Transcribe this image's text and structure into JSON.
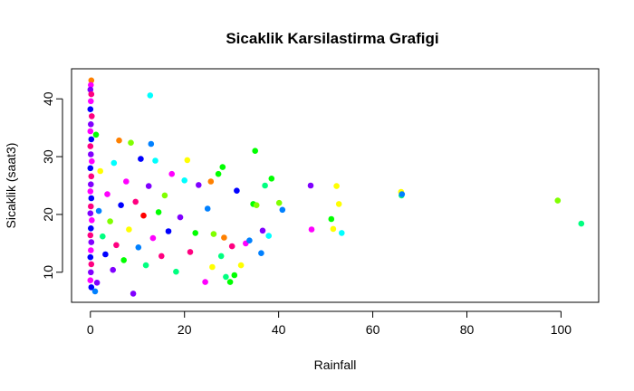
{
  "chart_data": {
    "type": "scatter",
    "title": "Sicaklik Karsilastirma Grafigi",
    "xlabel": "Rainfall",
    "ylabel": "Sicaklik (saat3)",
    "xlim": [
      -4,
      108
    ],
    "ylim": [
      4.8,
      45.2
    ],
    "x_ticks": [
      0,
      20,
      40,
      60,
      80,
      100
    ],
    "y_ticks": [
      10,
      20,
      30,
      40
    ],
    "grid": false,
    "legend": "none",
    "point_colors": [
      "#FF0000",
      "#FF8000",
      "#FFFF00",
      "#80FF00",
      "#00FF00",
      "#00FF80",
      "#00FFFF",
      "#0080FF",
      "#0000FF",
      "#8000FF",
      "#FF00FF",
      "#FF0080"
    ],
    "series": [
      {
        "name": "",
        "points": [
          {
            "x": 0.2,
            "y": 43.2,
            "c": 1
          },
          {
            "x": 0.1,
            "y": 42.4,
            "c": 10
          },
          {
            "x": 0.0,
            "y": 41.6,
            "c": 9
          },
          {
            "x": 0.2,
            "y": 40.8,
            "c": 11
          },
          {
            "x": 12.7,
            "y": 40.6,
            "c": 6
          },
          {
            "x": 0.1,
            "y": 39.6,
            "c": 10
          },
          {
            "x": 0.0,
            "y": 38.2,
            "c": 8
          },
          {
            "x": 0.3,
            "y": 37.0,
            "c": 11
          },
          {
            "x": 0.1,
            "y": 35.6,
            "c": 9
          },
          {
            "x": 0.0,
            "y": 34.4,
            "c": 10
          },
          {
            "x": 0.2,
            "y": 33.0,
            "c": 8
          },
          {
            "x": 0.0,
            "y": 31.8,
            "c": 11
          },
          {
            "x": 0.1,
            "y": 30.4,
            "c": 9
          },
          {
            "x": 0.3,
            "y": 29.2,
            "c": 10
          },
          {
            "x": 0.0,
            "y": 28.0,
            "c": 8
          },
          {
            "x": 0.2,
            "y": 26.6,
            "c": 11
          },
          {
            "x": 0.1,
            "y": 25.2,
            "c": 9
          },
          {
            "x": 0.0,
            "y": 24.0,
            "c": 10
          },
          {
            "x": 0.2,
            "y": 22.8,
            "c": 8
          },
          {
            "x": 0.1,
            "y": 21.4,
            "c": 11
          },
          {
            "x": 0.0,
            "y": 20.2,
            "c": 9
          },
          {
            "x": 0.3,
            "y": 19.0,
            "c": 10
          },
          {
            "x": 0.1,
            "y": 17.6,
            "c": 8
          },
          {
            "x": 0.0,
            "y": 16.4,
            "c": 11
          },
          {
            "x": 0.2,
            "y": 15.2,
            "c": 9
          },
          {
            "x": 0.1,
            "y": 13.8,
            "c": 10
          },
          {
            "x": 0.0,
            "y": 12.6,
            "c": 8
          },
          {
            "x": 0.2,
            "y": 11.4,
            "c": 11
          },
          {
            "x": 0.1,
            "y": 10.0,
            "c": 9
          },
          {
            "x": 0.0,
            "y": 8.6,
            "c": 10
          },
          {
            "x": 0.2,
            "y": 7.4,
            "c": 8
          },
          {
            "x": 1.0,
            "y": 6.7,
            "c": 7
          },
          {
            "x": 1.4,
            "y": 8.2,
            "c": 9
          },
          {
            "x": 2.1,
            "y": 27.5,
            "c": 2
          },
          {
            "x": 1.8,
            "y": 20.6,
            "c": 7
          },
          {
            "x": 2.6,
            "y": 16.2,
            "c": 5
          },
          {
            "x": 3.2,
            "y": 13.1,
            "c": 8
          },
          {
            "x": 1.2,
            "y": 33.8,
            "c": 4
          },
          {
            "x": 3.6,
            "y": 23.5,
            "c": 10
          },
          {
            "x": 4.2,
            "y": 18.8,
            "c": 3
          },
          {
            "x": 4.8,
            "y": 10.4,
            "c": 9
          },
          {
            "x": 5.0,
            "y": 28.9,
            "c": 6
          },
          {
            "x": 5.5,
            "y": 14.7,
            "c": 11
          },
          {
            "x": 6.1,
            "y": 32.8,
            "c": 1
          },
          {
            "x": 6.5,
            "y": 21.6,
            "c": 8
          },
          {
            "x": 7.1,
            "y": 12.1,
            "c": 4
          },
          {
            "x": 7.6,
            "y": 25.7,
            "c": 10
          },
          {
            "x": 8.2,
            "y": 17.4,
            "c": 2
          },
          {
            "x": 8.6,
            "y": 32.4,
            "c": 3
          },
          {
            "x": 9.1,
            "y": 6.3,
            "c": 9
          },
          {
            "x": 9.6,
            "y": 22.2,
            "c": 11
          },
          {
            "x": 10.2,
            "y": 14.3,
            "c": 7
          },
          {
            "x": 10.7,
            "y": 29.6,
            "c": 8
          },
          {
            "x": 11.3,
            "y": 19.8,
            "c": 0
          },
          {
            "x": 11.8,
            "y": 11.2,
            "c": 5
          },
          {
            "x": 12.4,
            "y": 24.9,
            "c": 9
          },
          {
            "x": 12.9,
            "y": 32.2,
            "c": 7
          },
          {
            "x": 13.3,
            "y": 15.9,
            "c": 10
          },
          {
            "x": 13.8,
            "y": 29.3,
            "c": 6
          },
          {
            "x": 14.5,
            "y": 20.4,
            "c": 4
          },
          {
            "x": 15.1,
            "y": 12.8,
            "c": 11
          },
          {
            "x": 15.8,
            "y": 23.3,
            "c": 3
          },
          {
            "x": 16.6,
            "y": 17.1,
            "c": 8
          },
          {
            "x": 17.3,
            "y": 27.0,
            "c": 10
          },
          {
            "x": 18.2,
            "y": 10.1,
            "c": 5
          },
          {
            "x": 19.1,
            "y": 19.5,
            "c": 9
          },
          {
            "x": 20.0,
            "y": 25.9,
            "c": 6
          },
          {
            "x": 20.6,
            "y": 29.4,
            "c": 2
          },
          {
            "x": 21.2,
            "y": 13.5,
            "c": 11
          },
          {
            "x": 22.3,
            "y": 16.8,
            "c": 4
          },
          {
            "x": 23.0,
            "y": 25.1,
            "c": 9
          },
          {
            "x": 24.4,
            "y": 8.3,
            "c": 10
          },
          {
            "x": 24.9,
            "y": 21.0,
            "c": 7
          },
          {
            "x": 25.6,
            "y": 25.7,
            "c": 1
          },
          {
            "x": 25.9,
            "y": 10.9,
            "c": 2
          },
          {
            "x": 26.2,
            "y": 16.6,
            "c": 3
          },
          {
            "x": 27.2,
            "y": 27.0,
            "c": 4
          },
          {
            "x": 27.8,
            "y": 12.8,
            "c": 5
          },
          {
            "x": 28.1,
            "y": 28.2,
            "c": 4
          },
          {
            "x": 28.4,
            "y": 16.0,
            "c": 1
          },
          {
            "x": 28.8,
            "y": 9.2,
            "c": 5
          },
          {
            "x": 29.7,
            "y": 8.3,
            "c": 4
          },
          {
            "x": 30.1,
            "y": 14.5,
            "c": 11
          },
          {
            "x": 30.6,
            "y": 9.5,
            "c": 4
          },
          {
            "x": 31.1,
            "y": 24.1,
            "c": 8
          },
          {
            "x": 32.0,
            "y": 11.2,
            "c": 2
          },
          {
            "x": 33.0,
            "y": 15.0,
            "c": 10
          },
          {
            "x": 33.8,
            "y": 15.5,
            "c": 7
          },
          {
            "x": 34.6,
            "y": 21.8,
            "c": 4
          },
          {
            "x": 35.0,
            "y": 31.0,
            "c": 4
          },
          {
            "x": 35.3,
            "y": 21.6,
            "c": 3
          },
          {
            "x": 36.3,
            "y": 13.3,
            "c": 7
          },
          {
            "x": 36.6,
            "y": 17.2,
            "c": 9
          },
          {
            "x": 37.1,
            "y": 25.0,
            "c": 5
          },
          {
            "x": 37.9,
            "y": 16.3,
            "c": 6
          },
          {
            "x": 38.5,
            "y": 26.2,
            "c": 4
          },
          {
            "x": 40.1,
            "y": 22.0,
            "c": 3
          },
          {
            "x": 40.8,
            "y": 20.8,
            "c": 7
          },
          {
            "x": 46.8,
            "y": 25.0,
            "c": 9
          },
          {
            "x": 47.0,
            "y": 17.4,
            "c": 10
          },
          {
            "x": 51.2,
            "y": 19.2,
            "c": 4
          },
          {
            "x": 51.6,
            "y": 17.5,
            "c": 2
          },
          {
            "x": 52.3,
            "y": 24.9,
            "c": 2
          },
          {
            "x": 52.8,
            "y": 21.8,
            "c": 2
          },
          {
            "x": 53.4,
            "y": 16.8,
            "c": 6
          },
          {
            "x": 66.0,
            "y": 23.9,
            "c": 2
          },
          {
            "x": 66.1,
            "y": 23.3,
            "c": 5
          },
          {
            "x": 66.2,
            "y": 23.5,
            "c": 7
          },
          {
            "x": 99.3,
            "y": 22.4,
            "c": 3
          },
          {
            "x": 104.3,
            "y": 18.4,
            "c": 5
          }
        ]
      }
    ]
  }
}
